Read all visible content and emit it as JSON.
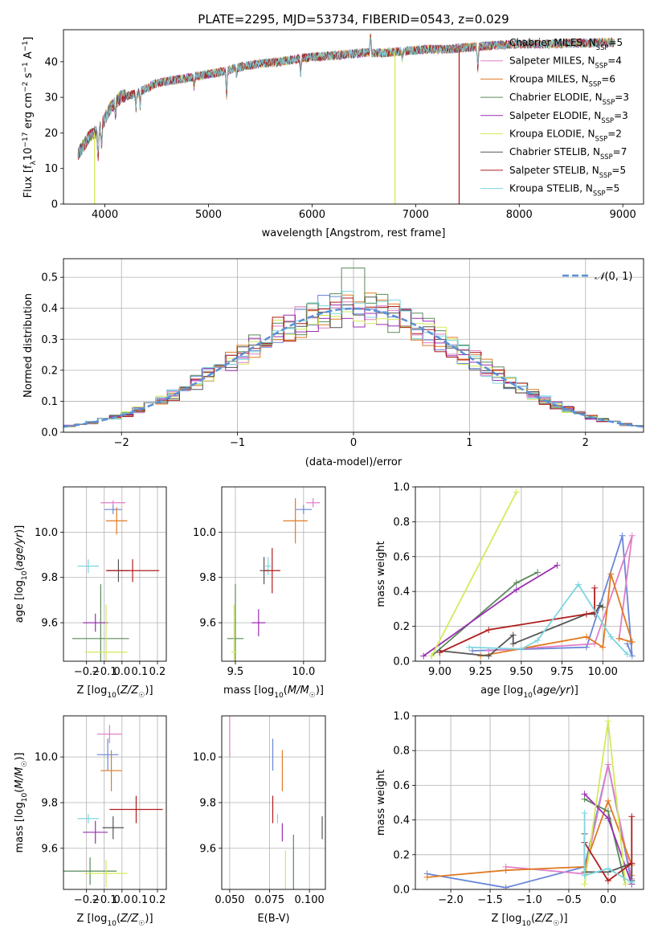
{
  "figure_title": "PLATE=2295, MJD=53734, FIBERID=0543, z=0.029",
  "colors": {
    "Chabrier MILES": "#6a86d8",
    "Salpeter MILES": "#e07fc8",
    "Kroupa MILES": "#e07a23",
    "Chabrier ELODIE": "#5a8a5a",
    "Salpeter ELODIE": "#9a2fb0",
    "Kroupa ELODIE": "#d4ea5a",
    "Chabrier STELIB": "#555555",
    "Salpeter STELIB": "#b01c1c",
    "Kroupa STELIB": "#7dd6e0",
    "normal": "#5b8fd6",
    "grid": "#b0b0b0"
  },
  "chart_data": [
    {
      "id": "spectrum",
      "type": "line",
      "title": "PLATE=2295, MJD=53734, FIBERID=0543, z=0.029",
      "xlabel": "wavelength [Angstrom, rest frame]",
      "ylabel": "Flux [f_λ10⁻¹⁷ erg cm⁻² s⁻¹ A⁻¹]",
      "xlim": [
        3600,
        9200
      ],
      "ylim": [
        0,
        49
      ],
      "xticks": [
        4000,
        5000,
        6000,
        7000,
        8000,
        9000
      ],
      "yticks": [
        0,
        10,
        20,
        30,
        40
      ],
      "legend_position": "right",
      "legend": [
        {
          "label": "Chabrier MILES, N",
          "sub": "SSP",
          "suffix": "=5",
          "model": "Chabrier MILES"
        },
        {
          "label": "Salpeter MILES, N",
          "sub": "SSP",
          "suffix": "=4",
          "model": "Salpeter MILES"
        },
        {
          "label": "Kroupa MILES, N",
          "sub": "SSP",
          "suffix": "=6",
          "model": "Kroupa MILES"
        },
        {
          "label": "Chabrier ELODIE, N",
          "sub": "SSP",
          "suffix": "=3",
          "model": "Chabrier ELODIE"
        },
        {
          "label": "Salpeter ELODIE, N",
          "sub": "SSP",
          "suffix": "=3",
          "model": "Salpeter ELODIE"
        },
        {
          "label": "Kroupa ELODIE, N",
          "sub": "SSP",
          "suffix": "=2",
          "model": "Kroupa ELODIE"
        },
        {
          "label": "Chabrier STELIB, N",
          "sub": "SSP",
          "suffix": "=7",
          "model": "Chabrier STELIB"
        },
        {
          "label": "Salpeter STELIB, N",
          "sub": "SSP",
          "suffix": "=5",
          "model": "Salpeter STELIB"
        },
        {
          "label": "Kroupa STELIB, N",
          "sub": "SSP",
          "suffix": "=5",
          "model": "Kroupa STELIB"
        }
      ],
      "continuum": [
        [
          3740,
          14
        ],
        [
          3850,
          19
        ],
        [
          3950,
          21
        ],
        [
          4000,
          24
        ],
        [
          4050,
          27
        ],
        [
          4150,
          30
        ],
        [
          4300,
          31
        ],
        [
          4500,
          34
        ],
        [
          4700,
          35
        ],
        [
          4900,
          36
        ],
        [
          5100,
          37
        ],
        [
          5300,
          38.5
        ],
        [
          5500,
          39.5
        ],
        [
          5700,
          40
        ],
        [
          5900,
          41
        ],
        [
          6100,
          41.5
        ],
        [
          6300,
          42
        ],
        [
          6500,
          42.5
        ],
        [
          6700,
          42.5
        ],
        [
          6900,
          43
        ],
        [
          7100,
          43.5
        ],
        [
          7300,
          43.5
        ],
        [
          7500,
          44
        ],
        [
          7700,
          44.5
        ],
        [
          7900,
          44.8
        ],
        [
          8100,
          45
        ],
        [
          8300,
          45
        ],
        [
          8500,
          45.2
        ],
        [
          8700,
          45.3
        ],
        [
          8900,
          45.5
        ]
      ],
      "dropouts": [
        {
          "x": 3900,
          "model": "Kroupa ELODIE"
        },
        {
          "x": 6800,
          "model": "Kroupa ELODIE"
        },
        {
          "x": 7420,
          "model": "Salpeter STELIB"
        }
      ]
    },
    {
      "id": "residuals",
      "type": "step-histogram",
      "xlabel": "(data-model)/error",
      "ylabel": "Normed distribution",
      "xlim": [
        -2.5,
        2.5
      ],
      "ylim": [
        0,
        0.56
      ],
      "xticks": [
        -2,
        -1,
        0,
        1,
        2
      ],
      "yticks": [
        0.0,
        0.1,
        0.2,
        0.3,
        0.4,
        0.5
      ],
      "bin_width": 0.1,
      "legend_position": "top-right",
      "legend": [
        {
          "label": "𝒩(0, 1)",
          "model": "normal"
        }
      ],
      "peak_bin": {
        "x": 0.0,
        "y": 0.53
      }
    },
    {
      "id": "age-vs-Z",
      "type": "errorbar",
      "xlabel": "Z [log₁₀(Z/Z☉)]",
      "ylabel": "age  [log₁₀(age/yr)]",
      "xlim": [
        -0.33,
        0.25
      ],
      "ylim": [
        9.43,
        10.2
      ],
      "xticks": [
        -0.2,
        -0.1,
        0.0,
        0.1,
        0.2
      ],
      "yticks": [
        9.6,
        9.8,
        10.0
      ],
      "points": [
        {
          "model": "Chabrier MILES",
          "x": -0.05,
          "xerr": 0.05,
          "y": 10.1,
          "yerr": 0.02
        },
        {
          "model": "Salpeter MILES",
          "x": -0.05,
          "xerr": 0.07,
          "y": 10.13,
          "yerr": 0.01
        },
        {
          "model": "Kroupa MILES",
          "x": -0.03,
          "xerr": 0.06,
          "y": 10.05,
          "yerr": 0.06
        },
        {
          "model": "Kroupa STELIB",
          "x": -0.19,
          "xerr": 0.06,
          "y": 9.85,
          "yerr": 0.03
        },
        {
          "model": "Chabrier STELIB",
          "x": -0.02,
          "xerr": 0.06,
          "y": 9.83,
          "yerr": 0.05
        },
        {
          "model": "Salpeter STELIB",
          "x": 0.06,
          "xerr": 0.15,
          "y": 9.83,
          "yerr": 0.05
        },
        {
          "model": "Salpeter ELODIE",
          "x": -0.15,
          "xerr": 0.07,
          "y": 9.6,
          "yerr": 0.04
        },
        {
          "model": "Chabrier ELODIE",
          "x": -0.12,
          "xerr": 0.16,
          "y": 9.53,
          "yerr": 0.24
        },
        {
          "model": "Kroupa ELODIE",
          "x": -0.09,
          "xerr": 0.12,
          "y": 9.47,
          "yerr": 0.21
        }
      ]
    },
    {
      "id": "age-vs-mass",
      "type": "errorbar",
      "xlabel": "mass [log₁₀(M/M☉)]",
      "ylabel": "",
      "xlim": [
        9.4,
        10.16
      ],
      "ylim": [
        9.43,
        10.2
      ],
      "xticks": [
        9.5,
        10.0
      ],
      "yticks": [
        9.6,
        9.8,
        10.0
      ],
      "points": [
        {
          "model": "Chabrier MILES",
          "x": 10.0,
          "xerr": 0.06,
          "y": 10.1,
          "yerr": 0.02
        },
        {
          "model": "Salpeter MILES",
          "x": 10.07,
          "xerr": 0.05,
          "y": 10.13,
          "yerr": 0.02
        },
        {
          "model": "Kroupa MILES",
          "x": 9.94,
          "xerr": 0.09,
          "y": 10.05,
          "yerr": 0.1
        },
        {
          "model": "Kroupa STELIB",
          "x": 9.74,
          "xerr": 0.02,
          "y": 9.85,
          "yerr": 0.04
        },
        {
          "model": "Chabrier STELIB",
          "x": 9.71,
          "xerr": 0.03,
          "y": 9.83,
          "yerr": 0.06
        },
        {
          "model": "Salpeter STELIB",
          "x": 9.77,
          "xerr": 0.06,
          "y": 9.83,
          "yerr": 0.1
        },
        {
          "model": "Salpeter ELODIE",
          "x": 9.67,
          "xerr": 0.05,
          "y": 9.6,
          "yerr": 0.06
        },
        {
          "model": "Chabrier ELODIE",
          "x": 9.5,
          "xerr": 0.06,
          "y": 9.53,
          "yerr": 0.24
        },
        {
          "model": "Kroupa ELODIE",
          "x": 9.49,
          "xerr": 0.02,
          "y": 9.47,
          "yerr": 0.21
        }
      ]
    },
    {
      "id": "weight-vs-age",
      "type": "line",
      "xlabel": "age  [log₁₀(age/yr)]",
      "ylabel": "mass weight",
      "xlim": [
        8.85,
        10.25
      ],
      "ylim": [
        0,
        1.0
      ],
      "xticks": [
        9.0,
        9.25,
        9.5,
        9.75,
        10.0
      ],
      "yticks": [
        0.0,
        0.2,
        0.4,
        0.6,
        0.8,
        1.0
      ],
      "grid": true,
      "series": [
        {
          "model": "Chabrier MILES",
          "points": [
            [
              9.2,
              0.06
            ],
            [
              9.9,
              0.08
            ],
            [
              10.12,
              0.72
            ],
            [
              10.18,
              0.03
            ],
            [
              10.15,
              0.1
            ]
          ]
        },
        {
          "model": "Salpeter MILES",
          "points": [
            [
              9.3,
              0.06
            ],
            [
              9.95,
              0.1
            ],
            [
              10.18,
              0.72
            ],
            [
              10.1,
              0.13
            ]
          ]
        },
        {
          "model": "Kroupa MILES",
          "points": [
            [
              9.25,
              0.03
            ],
            [
              9.9,
              0.14
            ],
            [
              10.0,
              0.08
            ],
            [
              10.05,
              0.5
            ],
            [
              10.18,
              0.11
            ],
            [
              10.1,
              0.13
            ]
          ]
        },
        {
          "model": "Chabrier ELODIE",
          "points": [
            [
              8.95,
              0.03
            ],
            [
              9.47,
              0.45
            ],
            [
              9.6,
              0.51
            ]
          ]
        },
        {
          "model": "Salpeter ELODIE",
          "points": [
            [
              8.9,
              0.03
            ],
            [
              9.47,
              0.41
            ],
            [
              9.72,
              0.55
            ]
          ]
        },
        {
          "model": "Kroupa ELODIE",
          "points": [
            [
              8.95,
              0.03
            ],
            [
              9.47,
              0.97
            ]
          ]
        },
        {
          "model": "Chabrier STELIB",
          "points": [
            [
              9.0,
              0.06
            ],
            [
              9.3,
              0.03
            ],
            [
              9.45,
              0.15
            ],
            [
              9.45,
              0.1
            ],
            [
              9.9,
              0.27
            ],
            [
              9.95,
              0.27
            ],
            [
              9.98,
              0.32
            ],
            [
              10.0,
              0.31
            ]
          ]
        },
        {
          "model": "Salpeter STELIB",
          "points": [
            [
              9.0,
              0.05
            ],
            [
              9.3,
              0.18
            ],
            [
              9.9,
              0.27
            ],
            [
              9.95,
              0.28
            ],
            [
              9.95,
              0.42
            ]
          ]
        },
        {
          "model": "Kroupa STELIB",
          "points": [
            [
              9.18,
              0.08
            ],
            [
              9.5,
              0.07
            ],
            [
              9.6,
              0.12
            ],
            [
              9.85,
              0.44
            ],
            [
              10.05,
              0.14
            ],
            [
              10.15,
              0.04
            ]
          ]
        }
      ]
    },
    {
      "id": "mass-vs-Z",
      "type": "errorbar",
      "xlabel": "Z [log₁₀(Z/Z☉)]",
      "ylabel": "mass [log₁₀(M/M☉)]",
      "xlim": [
        -0.33,
        0.25
      ],
      "ylim": [
        9.42,
        10.18
      ],
      "xticks": [
        -0.2,
        -0.1,
        0.0,
        0.1,
        0.2
      ],
      "yticks": [
        9.6,
        9.8,
        10.0
      ],
      "points": [
        {
          "model": "Salpeter MILES",
          "x": -0.07,
          "xerr": 0.07,
          "y": 10.1,
          "yerr": 0.04
        },
        {
          "model": "Chabrier MILES",
          "x": -0.08,
          "xerr": 0.06,
          "y": 10.01,
          "yerr": 0.07
        },
        {
          "model": "Kroupa MILES",
          "x": -0.06,
          "xerr": 0.06,
          "y": 9.94,
          "yerr": 0.09
        },
        {
          "model": "Salpeter STELIB",
          "x": 0.08,
          "xerr": 0.15,
          "y": 9.77,
          "yerr": 0.06
        },
        {
          "model": "Kroupa STELIB",
          "x": -0.19,
          "xerr": 0.06,
          "y": 9.73,
          "yerr": 0.02
        },
        {
          "model": "Chabrier STELIB",
          "x": -0.05,
          "xerr": 0.06,
          "y": 9.69,
          "yerr": 0.05
        },
        {
          "model": "Salpeter ELODIE",
          "x": -0.15,
          "xerr": 0.07,
          "y": 9.67,
          "yerr": 0.05
        },
        {
          "model": "Chabrier ELODIE",
          "x": -0.18,
          "xerr": 0.15,
          "y": 9.5,
          "yerr": 0.06
        },
        {
          "model": "Kroupa ELODIE",
          "x": -0.09,
          "xerr": 0.12,
          "y": 9.49,
          "yerr": 0.06
        }
      ]
    },
    {
      "id": "mass-vs-EBV",
      "type": "errorbar",
      "xlabel": "E(B-V)",
      "ylabel": "",
      "xlim": [
        0.045,
        0.11
      ],
      "ylim": [
        9.42,
        10.18
      ],
      "xticks": [
        0.05,
        0.075,
        0.1
      ],
      "xticklabels": [
        "0.050",
        "0.075",
        "0.100"
      ],
      "yticks": [
        9.6,
        9.8,
        10.0
      ],
      "points": [
        {
          "model": "Salpeter MILES",
          "x": 0.05,
          "y": 10.1,
          "yerr": 0.1
        },
        {
          "model": "Chabrier MILES",
          "x": 0.077,
          "y": 10.01,
          "yerr": 0.07
        },
        {
          "model": "Kroupa MILES",
          "x": 0.083,
          "y": 9.94,
          "yerr": 0.09
        },
        {
          "model": "Salpeter STELIB",
          "x": 0.077,
          "y": 9.77,
          "yerr": 0.06
        },
        {
          "model": "Kroupa STELIB",
          "x": 0.08,
          "y": 9.73,
          "yerr": 0.02
        },
        {
          "model": "Chabrier STELIB",
          "x": 0.108,
          "y": 9.69,
          "yerr": 0.05
        },
        {
          "model": "Salpeter ELODIE",
          "x": 0.083,
          "y": 9.67,
          "yerr": 0.04
        },
        {
          "model": "Chabrier ELODIE",
          "x": 0.09,
          "y": 9.5,
          "yerr": 0.16
        },
        {
          "model": "Kroupa ELODIE",
          "x": 0.085,
          "y": 9.49,
          "yerr": 0.1
        }
      ]
    },
    {
      "id": "weight-vs-Z",
      "type": "line",
      "xlabel": "Z [log₁₀(Z/Z☉)]",
      "ylabel": "mass weight",
      "xlim": [
        -2.45,
        0.45
      ],
      "ylim": [
        0,
        1.0
      ],
      "xticks": [
        -2.0,
        -1.5,
        -1.0,
        -0.5,
        0.0
      ],
      "yticks": [
        0.0,
        0.2,
        0.4,
        0.6,
        0.8,
        1.0
      ],
      "grid": true,
      "series": [
        {
          "model": "Chabrier MILES",
          "points": [
            [
              -2.3,
              0.09
            ],
            [
              -1.3,
              0.01
            ],
            [
              -0.3,
              0.13
            ],
            [
              0.0,
              0.72
            ],
            [
              0.3,
              0.03
            ],
            [
              0.3,
              0.05
            ]
          ]
        },
        {
          "model": "Salpeter MILES",
          "points": [
            [
              -1.3,
              0.13
            ],
            [
              -0.3,
              0.09
            ],
            [
              0.0,
              0.72
            ],
            [
              0.3,
              0.06
            ]
          ]
        },
        {
          "model": "Kroupa MILES",
          "points": [
            [
              -2.3,
              0.07
            ],
            [
              -1.3,
              0.11
            ],
            [
              -0.3,
              0.13
            ],
            [
              0.0,
              0.51
            ],
            [
              0.3,
              0.14
            ],
            [
              0.3,
              0.08
            ]
          ]
        },
        {
          "model": "Chabrier ELODIE",
          "points": [
            [
              -0.3,
              0.52
            ],
            [
              0.0,
              0.45
            ],
            [
              0.22,
              0.03
            ]
          ]
        },
        {
          "model": "Salpeter ELODIE",
          "points": [
            [
              -0.3,
              0.55
            ],
            [
              0.0,
              0.41
            ],
            [
              0.3,
              0.03
            ]
          ]
        },
        {
          "model": "Kroupa ELODIE",
          "points": [
            [
              -0.3,
              0.03
            ],
            [
              0.0,
              0.97
            ],
            [
              0.22,
              0.03
            ]
          ]
        },
        {
          "model": "Chabrier STELIB",
          "points": [
            [
              -0.3,
              0.32
            ],
            [
              -0.3,
              0.1
            ],
            [
              0.0,
              0.1
            ],
            [
              0.3,
              0.15
            ],
            [
              0.3,
              0.05
            ]
          ]
        },
        {
          "model": "Salpeter STELIB",
          "points": [
            [
              -0.3,
              0.27
            ],
            [
              0.0,
              0.05
            ],
            [
              0.3,
              0.15
            ],
            [
              0.3,
              0.42
            ]
          ]
        },
        {
          "model": "Kroupa STELIB",
          "points": [
            [
              -0.3,
              0.44
            ],
            [
              -0.3,
              0.08
            ],
            [
              0.0,
              0.12
            ],
            [
              0.3,
              0.04
            ]
          ]
        }
      ]
    }
  ]
}
